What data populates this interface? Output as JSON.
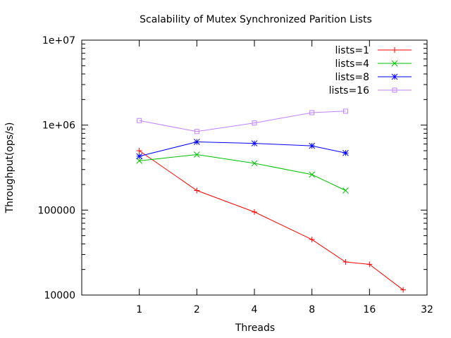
{
  "chart_data": {
    "type": "line",
    "title": "Scalability of Mutex Synchronized Parition Lists",
    "xlabel": "Threads",
    "ylabel": "Throughput(ops/s)",
    "x_scale": "log2",
    "y_scale": "log10",
    "xlim": [
      0.5,
      32
    ],
    "ylim": [
      10000,
      10000000
    ],
    "x_ticks": [
      {
        "value": 1,
        "label": "1"
      },
      {
        "value": 2,
        "label": "2"
      },
      {
        "value": 4,
        "label": "4"
      },
      {
        "value": 8,
        "label": "8"
      },
      {
        "value": 16,
        "label": "16"
      },
      {
        "value": 32,
        "label": "32"
      }
    ],
    "y_ticks": [
      {
        "value": 10000,
        "label": "10000"
      },
      {
        "value": 100000,
        "label": "100000"
      },
      {
        "value": 1000000,
        "label": "1e+06"
      },
      {
        "value": 10000000,
        "label": "1e+07"
      }
    ],
    "grid": false,
    "legend": "top-right",
    "series": [
      {
        "name": "lists=1",
        "color": "#ff0000",
        "marker": "plus",
        "x": [
          1,
          2,
          4,
          8,
          12,
          16,
          24
        ],
        "y": [
          500000,
          170000,
          95000,
          45000,
          24500,
          23000,
          11500
        ]
      },
      {
        "name": "lists=4",
        "color": "#00c000",
        "marker": "cross",
        "x": [
          1,
          2,
          4,
          8,
          12
        ],
        "y": [
          380000,
          450000,
          355000,
          262000,
          170000
        ]
      },
      {
        "name": "lists=8",
        "color": "#0000ff",
        "marker": "star",
        "x": [
          1,
          2,
          4,
          8,
          12
        ],
        "y": [
          430000,
          635000,
          610000,
          570000,
          470000
        ]
      },
      {
        "name": "lists=16",
        "color": "#c080ff",
        "marker": "square",
        "x": [
          1,
          2,
          4,
          8,
          12
        ],
        "y": [
          1130000,
          840000,
          1060000,
          1400000,
          1460000
        ]
      }
    ]
  }
}
